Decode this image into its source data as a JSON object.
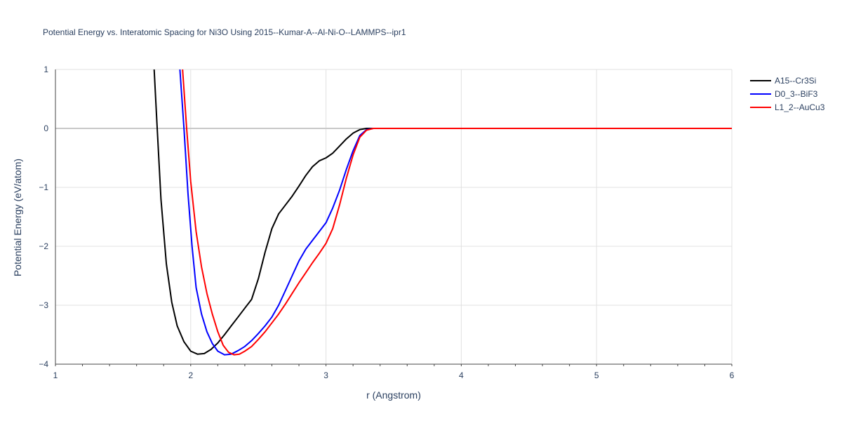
{
  "chart_data": {
    "type": "line",
    "title": "Potential Energy vs. Interatomic Spacing for Ni3O Using 2015--Kumar-A--Al-Ni-O--LAMMPS--ipr1",
    "xlabel": "r (Angstrom)",
    "ylabel": "Potential Energy (eV/atom)",
    "xlim": [
      1,
      6
    ],
    "ylim": [
      -4,
      1
    ],
    "xticks": [
      "1",
      "2",
      "3",
      "4",
      "5",
      "6"
    ],
    "yticks": [
      "1",
      "0",
      "−1",
      "−2",
      "−3",
      "−4"
    ],
    "grid": true,
    "legend_position": "top-right",
    "series": [
      {
        "name": "A15--Cr3Si",
        "color": "#000000",
        "x": [
          1.73,
          1.75,
          1.78,
          1.82,
          1.86,
          1.9,
          1.95,
          2.0,
          2.05,
          2.1,
          2.15,
          2.2,
          2.25,
          2.3,
          2.35,
          2.4,
          2.45,
          2.5,
          2.55,
          2.6,
          2.65,
          2.7,
          2.75,
          2.8,
          2.85,
          2.9,
          2.95,
          3.0,
          3.05,
          3.1,
          3.15,
          3.2,
          3.25,
          3.3,
          3.35,
          3.4,
          3.5,
          4.0,
          5.0,
          6.0
        ],
        "y": [
          1.0,
          0.1,
          -1.2,
          -2.3,
          -2.95,
          -3.35,
          -3.62,
          -3.78,
          -3.83,
          -3.82,
          -3.75,
          -3.64,
          -3.5,
          -3.35,
          -3.2,
          -3.05,
          -2.9,
          -2.55,
          -2.1,
          -1.7,
          -1.45,
          -1.3,
          -1.15,
          -0.98,
          -0.8,
          -0.65,
          -0.55,
          -0.5,
          -0.42,
          -0.3,
          -0.18,
          -0.08,
          -0.02,
          0.0,
          0.0,
          0.0,
          0.0,
          0.0,
          0.0,
          0.0
        ]
      },
      {
        "name": "D0_3--BiF3",
        "color": "#0000ff",
        "x": [
          1.92,
          1.95,
          1.98,
          2.01,
          2.04,
          2.08,
          2.12,
          2.16,
          2.2,
          2.25,
          2.3,
          2.35,
          2.4,
          2.45,
          2.5,
          2.55,
          2.6,
          2.65,
          2.7,
          2.75,
          2.8,
          2.85,
          2.9,
          2.95,
          3.0,
          3.05,
          3.1,
          3.15,
          3.2,
          3.25,
          3.3,
          3.35,
          3.4,
          3.5,
          4.0,
          5.0,
          6.0
        ],
        "y": [
          1.0,
          0.0,
          -1.1,
          -2.0,
          -2.7,
          -3.15,
          -3.45,
          -3.65,
          -3.78,
          -3.84,
          -3.83,
          -3.77,
          -3.7,
          -3.6,
          -3.48,
          -3.35,
          -3.2,
          -3.0,
          -2.75,
          -2.5,
          -2.25,
          -2.05,
          -1.9,
          -1.75,
          -1.6,
          -1.35,
          -1.05,
          -0.7,
          -0.38,
          -0.12,
          -0.02,
          0.0,
          0.0,
          0.0,
          0.0,
          0.0,
          0.0
        ]
      },
      {
        "name": "L1_2--AuCu3",
        "color": "#ff0000",
        "x": [
          1.94,
          1.97,
          2.0,
          2.04,
          2.08,
          2.12,
          2.16,
          2.2,
          2.24,
          2.28,
          2.32,
          2.36,
          2.4,
          2.45,
          2.5,
          2.55,
          2.6,
          2.65,
          2.7,
          2.75,
          2.8,
          2.85,
          2.9,
          2.95,
          3.0,
          3.05,
          3.1,
          3.15,
          3.2,
          3.25,
          3.3,
          3.35,
          3.4,
          3.5,
          4.0,
          5.0,
          6.0
        ],
        "y": [
          1.0,
          0.0,
          -0.9,
          -1.75,
          -2.35,
          -2.8,
          -3.15,
          -3.45,
          -3.68,
          -3.8,
          -3.84,
          -3.83,
          -3.78,
          -3.7,
          -3.58,
          -3.45,
          -3.3,
          -3.15,
          -2.98,
          -2.8,
          -2.62,
          -2.45,
          -2.28,
          -2.12,
          -1.95,
          -1.7,
          -1.3,
          -0.85,
          -0.45,
          -0.15,
          -0.03,
          0.0,
          0.0,
          0.0,
          0.0,
          0.0,
          0.0
        ]
      }
    ]
  }
}
